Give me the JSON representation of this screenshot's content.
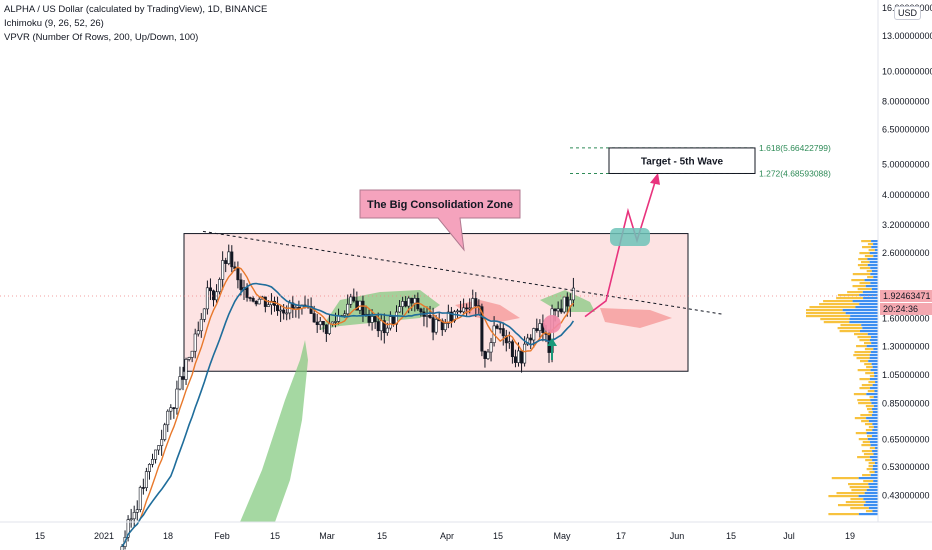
{
  "legend": {
    "title": "ALPHA / US Dollar (calculated by TradingView), 1D, BINANCE",
    "ichimoku": "Ichimoku (9, 26, 52, 26)",
    "vpvr": "VPVR (Number Of Rows, 200, Up/Down, 100)"
  },
  "currency": "USD",
  "last_price": "1.92463471",
  "countdown": "20:24:36",
  "annotations": {
    "callout": "The Big Consolidation Zone",
    "target": "Target - 5th Wave",
    "fib_high": "1.618(5.66422799)",
    "fib_low": "1.272(4.68593088)"
  },
  "colors": {
    "zone_fill": "#fde3e3",
    "callout_fill": "#f5a3bd",
    "kijun": "#1f6d9b",
    "tenkan": "#e8782b",
    "cloud_bull": "#7fc77a",
    "cloud_bear": "#f59a9a",
    "arrow": "#e8337d",
    "target_box": "#6dc3b8",
    "vol_up": "#f7c23e",
    "vol_down": "#3d8ef0",
    "fib_line": "#2e8b57"
  },
  "chart_data": {
    "type": "candlestick",
    "y_scale": "log",
    "ylim": [
      0.38,
      16.0
    ],
    "x_ticks": [
      "15",
      "2021",
      "18",
      "Feb",
      "15",
      "Mar",
      "15",
      "Apr",
      "15",
      "May",
      "17",
      "Jun",
      "15",
      "Jul",
      "19"
    ],
    "y_ticks": [
      "16.00000000",
      "13.00000000",
      "10.00000000",
      "8.00000000",
      "6.50000000",
      "5.00000000",
      "4.00000000",
      "3.20000000",
      "2.60000000",
      "1.60000000",
      "1.30000000",
      "1.05000000",
      "0.85000000",
      "0.65000000",
      "0.53000000",
      "0.43000000"
    ],
    "consolidation_zone": [
      1.08,
      3.0
    ],
    "trendline_from": 3.05,
    "trendline_to": 1.65,
    "projection": [
      1.62,
      1.82,
      3.55,
      2.85,
      4.5
    ],
    "fib_levels": [
      5.66422799,
      4.68593088
    ]
  }
}
